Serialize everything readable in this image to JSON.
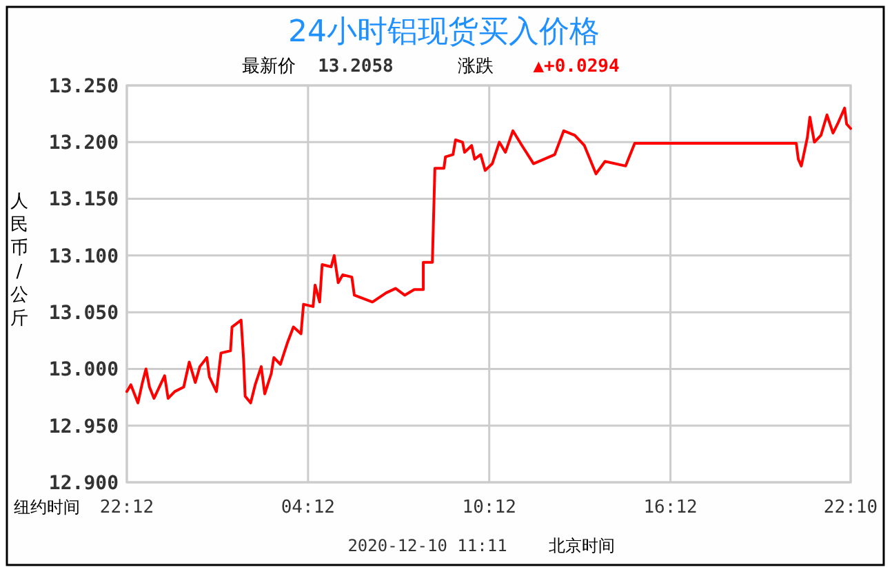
{
  "chart_data": {
    "type": "line",
    "title": "24小时铝现货买入价格",
    "ylabel": "人民币/公斤",
    "annotations": [
      "最新价",
      "13.2058",
      "涨跌",
      "▲+0.0294",
      "纽约时间",
      "2020-12-10 11:11",
      "北京时间"
    ],
    "xlim": [
      "2020-12-08T22:12",
      "2020-12-09T22:10"
    ],
    "xticks": [
      {
        "value": "2020-12-08T22:12",
        "label": "22:12"
      },
      {
        "value": "2020-12-09T04:12",
        "label": "04:12"
      },
      {
        "value": "2020-12-09T10:12",
        "label": "10:12"
      },
      {
        "value": "2020-12-09T16:12",
        "label": "16:12"
      },
      {
        "value": "2020-12-09T22:10",
        "label": "22:10"
      }
    ],
    "ylim": [
      12.9,
      13.25
    ],
    "yticks": [
      {
        "value": 12.9,
        "label": "12.900"
      },
      {
        "value": 12.95,
        "label": "12.950"
      },
      {
        "value": 13,
        "label": "13.000"
      },
      {
        "value": 13.05,
        "label": "13.050"
      },
      {
        "value": 13.1,
        "label": "13.100"
      },
      {
        "value": 13.15,
        "label": "13.150"
      },
      {
        "value": 13.2,
        "label": "13.200"
      },
      {
        "value": 13.25,
        "label": "13.250"
      }
    ],
    "grid": true,
    "marker": "none",
    "line_style": "solid",
    "series": [
      {
        "color": "#ff0000",
        "x": [
          "2020-12-08T22:12",
          "2020-12-08T22:20",
          "2020-12-08T22:34",
          "2020-12-08T22:43",
          "2020-12-08T22:50",
          "2020-12-08T22:57",
          "2020-12-08T23:06",
          "2020-12-08T23:27",
          "2020-12-08T23:34",
          "2020-12-08T23:47",
          "2020-12-09T00:05",
          "2020-12-09T00:16",
          "2020-12-09T00:28",
          "2020-12-09T00:37",
          "2020-12-09T00:51",
          "2020-12-09T00:56",
          "2020-12-09T01:10",
          "2020-12-09T01:19",
          "2020-12-09T01:38",
          "2020-12-09T01:41",
          "2020-12-09T01:59",
          "2020-12-09T02:04",
          "2020-12-09T02:07",
          "2020-12-09T02:18",
          "2020-12-09T02:27",
          "2020-12-09T02:39",
          "2020-12-09T02:46",
          "2020-12-09T02:59",
          "2020-12-09T03:04",
          "2020-12-09T03:17",
          "2020-12-09T03:31",
          "2020-12-09T03:43",
          "2020-12-09T03:58",
          "2020-12-09T04:03",
          "2020-12-09T04:22",
          "2020-12-09T04:26",
          "2020-12-09T04:35",
          "2020-12-09T04:40",
          "2020-12-09T04:58",
          "2020-12-09T05:04",
          "2020-12-09T05:12",
          "2020-12-09T05:21",
          "2020-12-09T05:39",
          "2020-12-09T05:44",
          "2020-12-09T06:20",
          "2020-12-09T06:47",
          "2020-12-09T07:06",
          "2020-12-09T07:24",
          "2020-12-09T07:43",
          "2020-12-09T08:01",
          "2020-12-09T08:01",
          "2020-12-09T08:19",
          "2020-12-09T08:24",
          "2020-12-09T08:42",
          "2020-12-09T08:45",
          "2020-12-09T09:00",
          "2020-12-09T09:05",
          "2020-12-09T09:19",
          "2020-12-09T09:23",
          "2020-12-09T09:37",
          "2020-12-09T09:43",
          "2020-12-09T09:55",
          "2020-12-09T10:04",
          "2020-12-09T10:18",
          "2020-12-09T10:32",
          "2020-12-09T10:44",
          "2020-12-09T10:59",
          "2020-12-09T11:17",
          "2020-12-09T11:40",
          "2020-12-09T12:22",
          "2020-12-09T12:40",
          "2020-12-09T13:02",
          "2020-12-09T13:21",
          "2020-12-09T13:44",
          "2020-12-09T14:02",
          "2020-12-09T14:43",
          "2020-12-09T15:01",
          "2020-12-09T20:22",
          "2020-12-09T20:26",
          "2020-12-09T20:32",
          "2020-12-09T20:44",
          "2020-12-09T20:49",
          "2020-12-09T20:58",
          "2020-12-09T21:11",
          "2020-12-09T21:23",
          "2020-12-09T21:35",
          "2020-12-09T21:44",
          "2020-12-09T21:58",
          "2020-12-09T22:02",
          "2020-12-09T22:10"
        ],
        "values": [
          12.98,
          12.986,
          12.97,
          12.988,
          13.0,
          12.984,
          12.974,
          12.994,
          12.974,
          12.98,
          12.984,
          13.006,
          12.988,
          13.002,
          13.01,
          12.993,
          12.98,
          13.014,
          13.016,
          13.037,
          13.043,
          13.008,
          12.976,
          12.97,
          12.986,
          13.002,
          12.978,
          12.996,
          13.01,
          13.004,
          13.023,
          13.037,
          13.031,
          13.057,
          13.055,
          13.074,
          13.059,
          13.092,
          13.09,
          13.1,
          13.076,
          13.083,
          13.081,
          13.065,
          13.059,
          13.067,
          13.071,
          13.065,
          13.07,
          13.07,
          13.094,
          13.094,
          13.177,
          13.177,
          13.187,
          13.189,
          13.202,
          13.2,
          13.191,
          13.197,
          13.185,
          13.189,
          13.175,
          13.181,
          13.2,
          13.191,
          13.21,
          13.197,
          13.181,
          13.189,
          13.21,
          13.206,
          13.197,
          13.172,
          13.183,
          13.179,
          13.199,
          13.199,
          13.185,
          13.179,
          13.204,
          13.222,
          13.2,
          13.206,
          13.224,
          13.208,
          13.216,
          13.23,
          13.216,
          13.212
        ]
      }
    ]
  }
}
